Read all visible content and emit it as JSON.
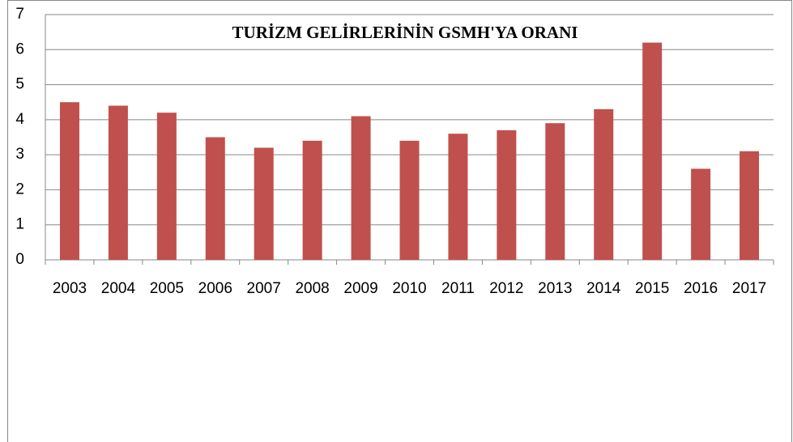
{
  "chart_data": {
    "type": "bar",
    "title": "TURİZM GELİRLERİNİN GSMH'YA ORANI",
    "categories": [
      "2003",
      "2004",
      "2005",
      "2006",
      "2007",
      "2008",
      "2009",
      "2010",
      "2011",
      "2012",
      "2013",
      "2014",
      "2015",
      "2016",
      "2017"
    ],
    "values": [
      4.5,
      4.4,
      4.2,
      3.5,
      3.2,
      3.4,
      4.1,
      3.4,
      3.6,
      3.7,
      3.9,
      4.3,
      6.2,
      2.6,
      3.1
    ],
    "color": "#c0504d",
    "ylim": [
      0,
      7
    ],
    "yticks": [
      0,
      1,
      2,
      3,
      4,
      5,
      6,
      7
    ],
    "grid": true
  }
}
